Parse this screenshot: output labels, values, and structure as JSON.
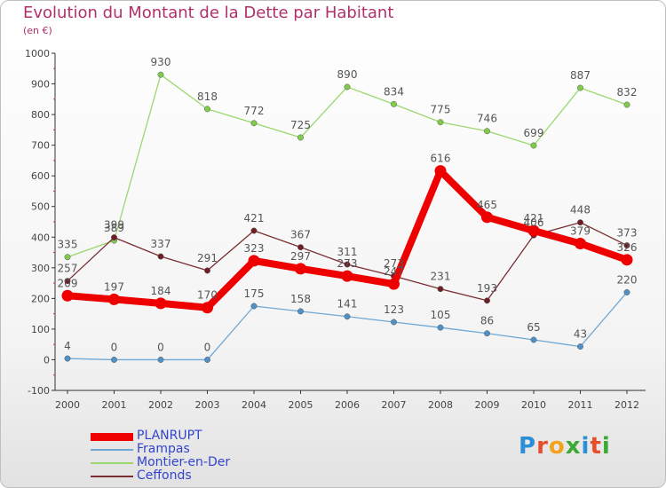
{
  "title": "Evolution du Montant de la Dette par Habitant",
  "subtitle": "(en €)",
  "brand": {
    "logo_text": "Proxiti",
    "logo_colors": [
      "#2a8fd6",
      "#e84d2b",
      "#f2a31b",
      "#3aaa35",
      "#2a8fd6",
      "#e84d2b",
      "#3aaa35"
    ]
  },
  "chart_data": {
    "type": "line",
    "x": [
      "2000",
      "2001",
      "2002",
      "2003",
      "2004",
      "2005",
      "2006",
      "2007",
      "2008",
      "2009",
      "2010",
      "2011",
      "2012"
    ],
    "y_ticks": [
      "-100",
      "0",
      "100",
      "200",
      "300",
      "400",
      "500",
      "600",
      "700",
      "800",
      "900",
      "1000"
    ],
    "ylim": [
      -100,
      1000
    ],
    "grid": "none",
    "legend_position": "bottom-left",
    "series": [
      {
        "name": "Montier-en-Der",
        "color": "#9ad86f",
        "marker": "#7fcc4a",
        "values": [
          335,
          389,
          930,
          818,
          772,
          725,
          890,
          834,
          775,
          746,
          699,
          887,
          832
        ]
      },
      {
        "name": "Ceffonds",
        "color": "#7a2e33",
        "marker": "#6e1f24",
        "values": [
          257,
          399,
          337,
          291,
          421,
          367,
          311,
          273,
          231,
          193,
          406,
          448,
          373
        ]
      },
      {
        "name": "Frampas",
        "color": "#6fa8d4",
        "marker": "#4f91c6",
        "values": [
          4,
          0,
          0,
          0,
          175,
          158,
          141,
          123,
          105,
          86,
          65,
          43,
          220
        ]
      },
      {
        "name": "PLANRUPT",
        "color": "#ee0000",
        "marker": "#ee0000",
        "values": [
          209,
          197,
          184,
          170,
          323,
          297,
          273,
          247,
          616,
          465,
          421,
          379,
          326
        ]
      }
    ],
    "legend_order": [
      "PLANRUPT",
      "Frampas",
      "Montier-en-Der",
      "Ceffonds"
    ]
  }
}
